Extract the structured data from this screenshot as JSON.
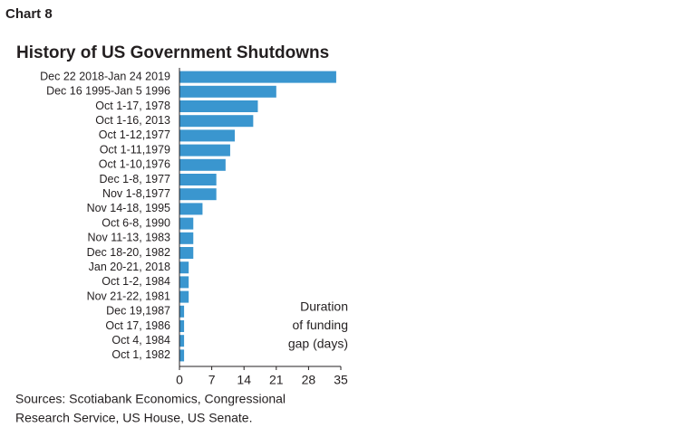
{
  "chart_data": {
    "type": "bar",
    "orientation": "horizontal",
    "label": "Chart 8",
    "title": "History of US Government Shutdowns",
    "categories": [
      "Dec 22 2018-Jan 24 2019",
      "Dec 16 1995-Jan 5 1996",
      "Oct 1-17, 1978",
      "Oct 1-16, 2013",
      "Oct 1-12,1977",
      "Oct 1-11,1979",
      "Oct 1-10,1976",
      "Dec 1-8, 1977",
      "Nov 1-8,1977",
      "Nov 14-18, 1995",
      "Oct 6-8, 1990",
      "Nov 11-13, 1983",
      "Dec 18-20, 1982",
      "Jan 20-21, 2018",
      "Oct 1-2, 1984",
      "Nov 21-22, 1981",
      "Dec 19,1987",
      "Oct 17, 1986",
      "Oct 4, 1984",
      "Oct 1, 1982"
    ],
    "values": [
      34,
      21,
      17,
      16,
      12,
      11,
      10,
      8,
      8,
      5,
      3,
      3,
      3,
      2,
      2,
      2,
      1,
      1,
      1,
      1
    ],
    "color": "#3a96cf",
    "xlim": [
      0,
      35
    ],
    "xticks": [
      0,
      7,
      14,
      21,
      28,
      35
    ],
    "annotation": [
      "Duration",
      "of funding",
      "gap (days)"
    ],
    "source": [
      "Sources: Scotiabank Economics, Congressional",
      "Research Service, US House, US Senate."
    ]
  }
}
